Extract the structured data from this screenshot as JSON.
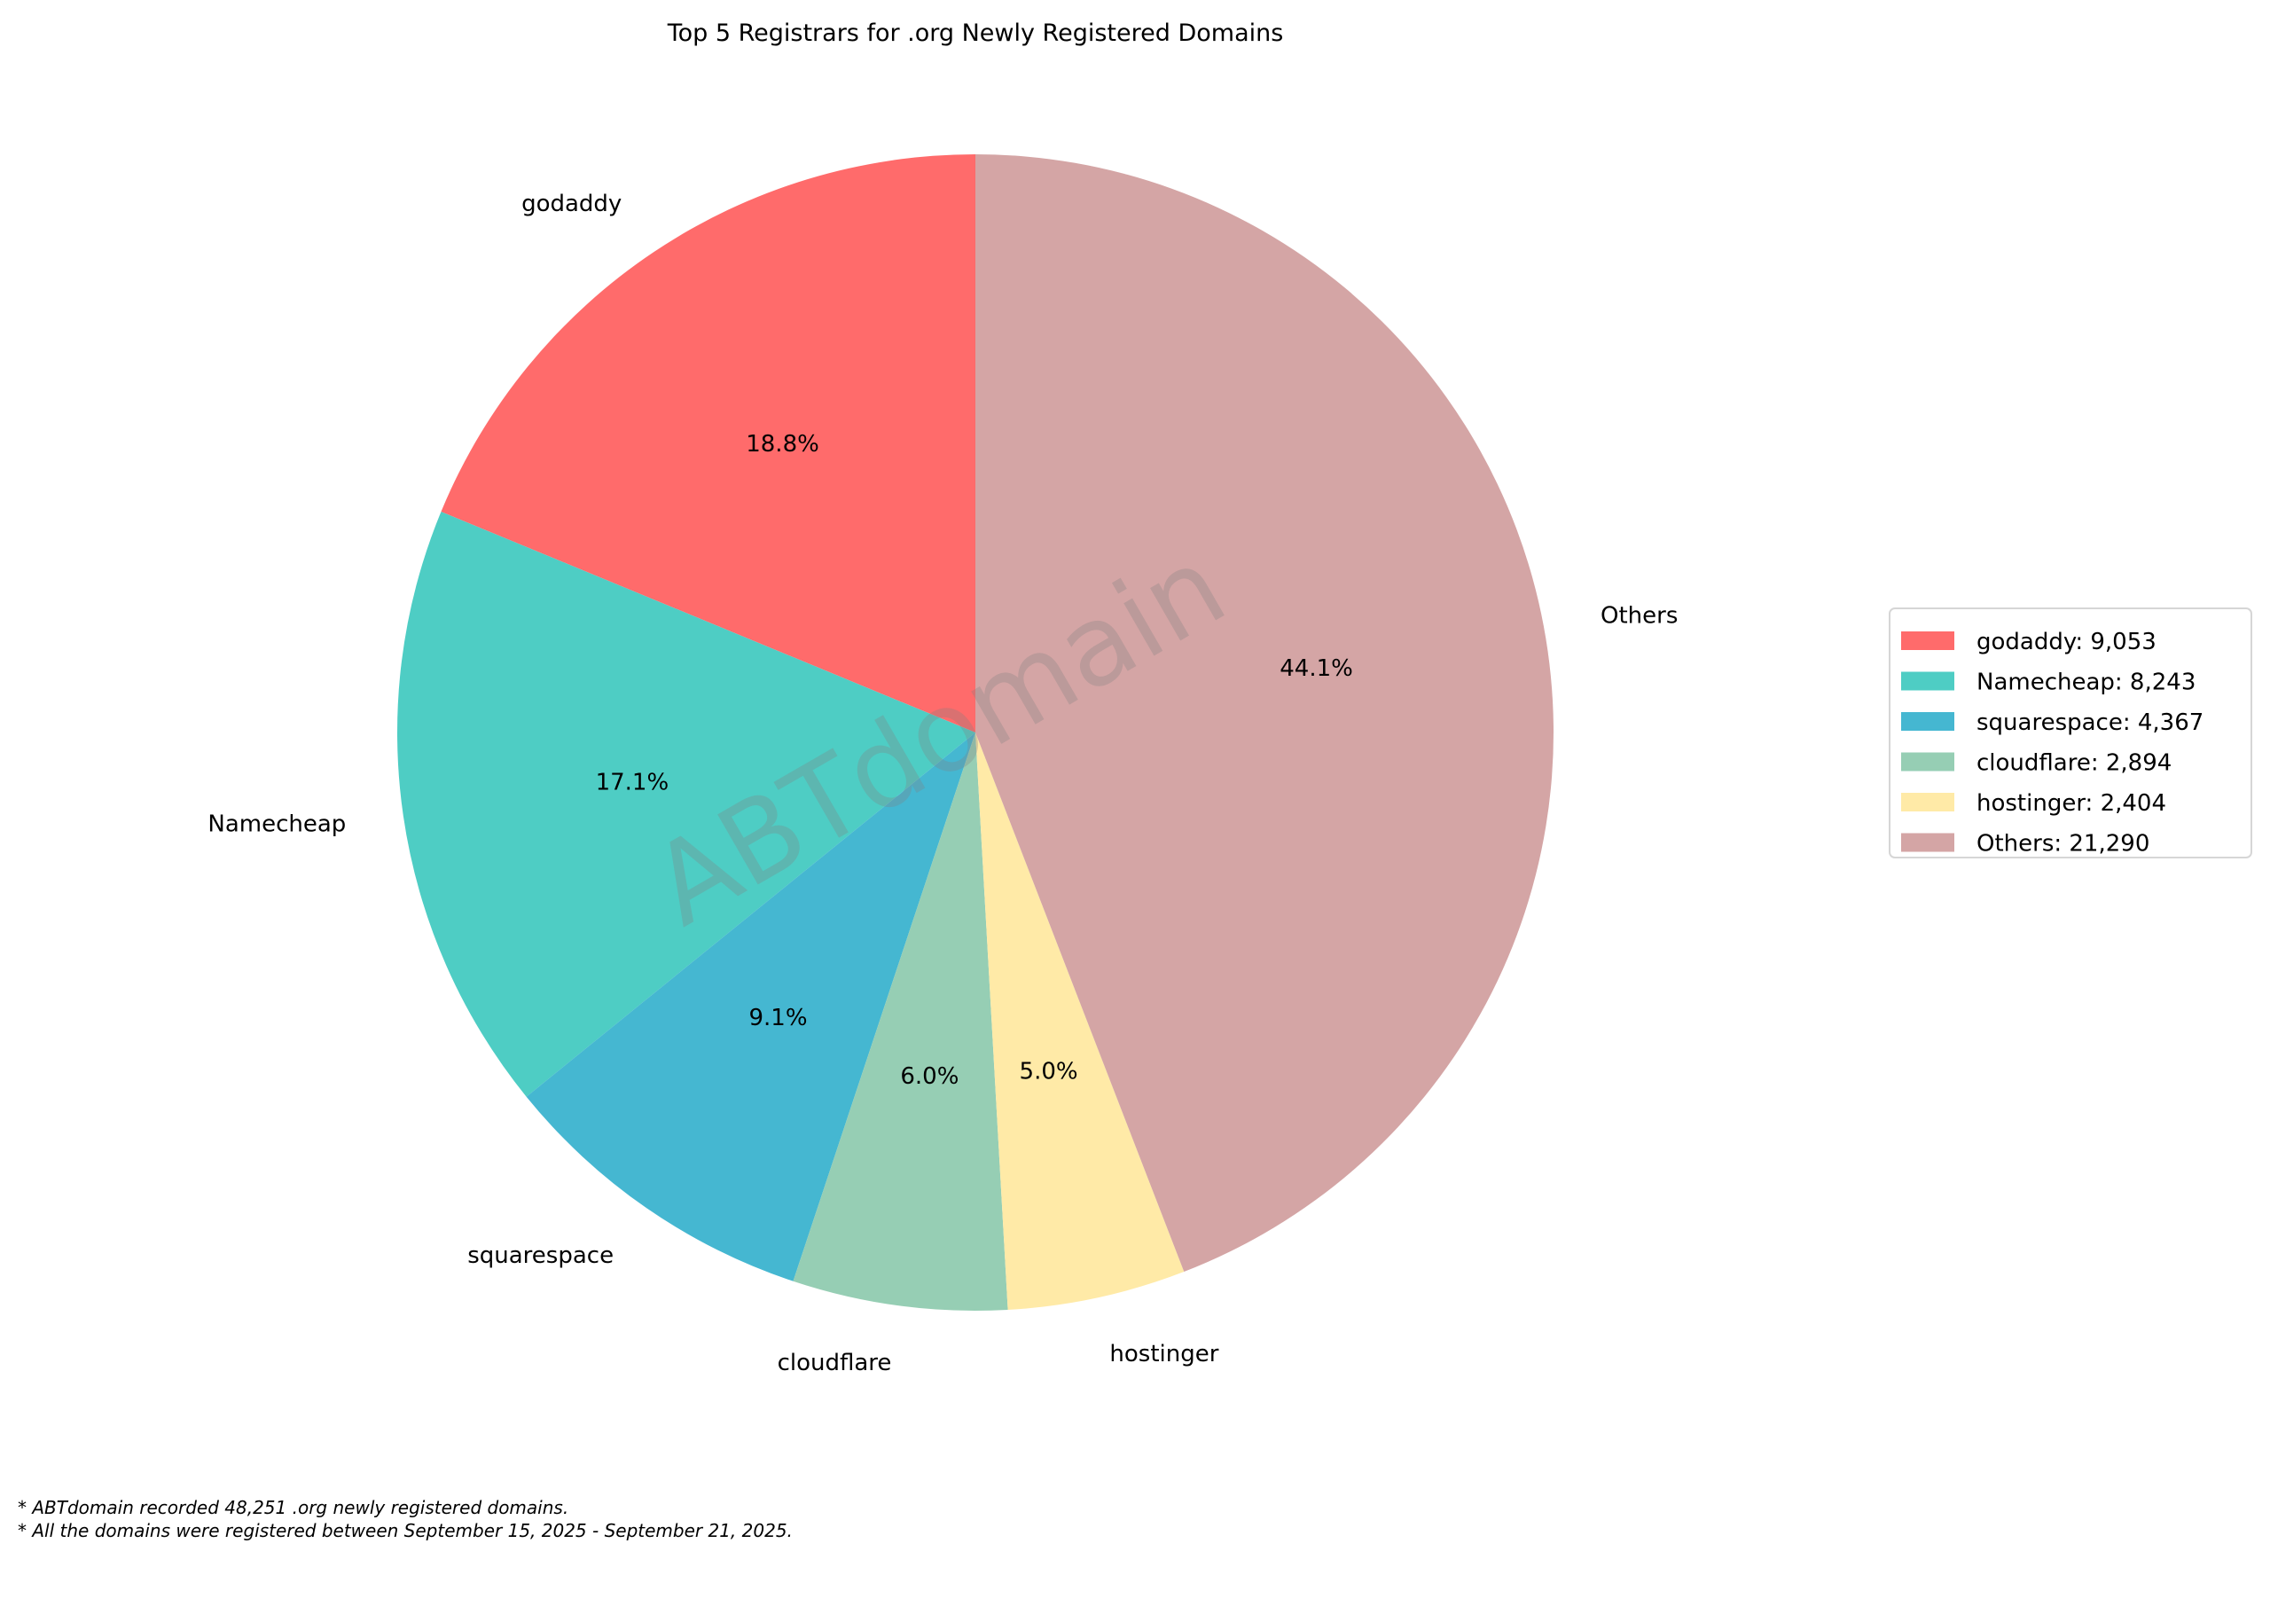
{
  "chart_data": {
    "type": "pie",
    "title": "Top 5 Registrars for .org Newly Registered Domains",
    "start_angle_deg": 90,
    "direction": "counterclockwise",
    "slices": [
      {
        "label": "godaddy",
        "value": 9053,
        "pct_label": "18.8%",
        "legend": "godaddy: 9,053",
        "color": "#FF6B6B"
      },
      {
        "label": "Namecheap",
        "value": 8243,
        "pct_label": "17.1%",
        "legend": "Namecheap: 8,243",
        "color": "#4ECDC4"
      },
      {
        "label": "squarespace",
        "value": 4367,
        "pct_label": "9.1%",
        "legend": "squarespace: 4,367",
        "color": "#45B7D1"
      },
      {
        "label": "cloudflare",
        "value": 2894,
        "pct_label": "6.0%",
        "legend": "cloudflare: 2,894",
        "color": "#96CEB4"
      },
      {
        "label": "hostinger",
        "value": 2404,
        "pct_label": "5.0%",
        "legend": "hostinger: 2,404",
        "color": "#FFEAA7"
      },
      {
        "label": "Others",
        "value": 21290,
        "pct_label": "44.1%",
        "legend": "Others: 21,290",
        "color": "#D4A5A5"
      }
    ],
    "legend_position": "right",
    "watermark": "ABTdomain"
  },
  "footnotes": [
    "* ABTdomain recorded 48,251 .org newly registered domains.",
    "* All the domains were registered between September 15, 2025 - September 21, 2025."
  ]
}
